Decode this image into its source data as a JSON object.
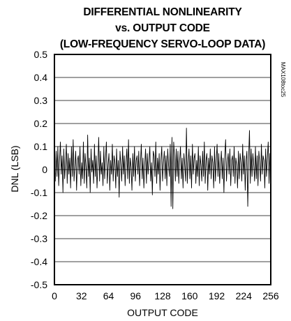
{
  "chart_data": {
    "type": "line",
    "title": [
      "DIFFERENTIAL NONLINEARITY",
      "vs. OUTPUT CODE",
      "(LOW-FREQUENCY SERVO-LOOP DATA)"
    ],
    "xlabel": "OUTPUT CODE",
    "ylabel": "DNL (LSB)",
    "xlim": [
      0,
      256
    ],
    "ylim": [
      -0.5,
      0.5
    ],
    "xticks": [
      0,
      32,
      64,
      96,
      128,
      160,
      192,
      224,
      256
    ],
    "yticks": [
      0.5,
      0.4,
      0.3,
      0.2,
      0.1,
      0,
      -0.1,
      -0.2,
      -0.3,
      -0.4,
      -0.5
    ],
    "ytick_labels": [
      "0.5",
      "0.4",
      "0.3",
      "0.2",
      "0.1",
      "0",
      "-0.1",
      "-0.2",
      "-0.3",
      "-0.4",
      "-0.5"
    ],
    "grid": "horizontal",
    "watermark": "MAX108toc25",
    "series": [
      {
        "values": [
          0.02,
          -0.05,
          0.08,
          -0.03,
          0.1,
          -0.07,
          0.04,
          0.12,
          -0.02,
          0.06,
          -0.1,
          0.09,
          -0.04,
          0.03,
          0.11,
          -0.06,
          0.07,
          -0.02,
          0.05,
          -0.08,
          0.1,
          -0.03,
          0.13,
          -0.05,
          0.02,
          0.08,
          -0.09,
          0.04,
          0.06,
          -0.02,
          0.1,
          -0.07,
          0.03,
          -0.04,
          0.12,
          -0.06,
          0.07,
          0.01,
          -0.08,
          0.15,
          -0.03,
          0.05,
          -0.1,
          0.09,
          -0.01,
          0.04,
          -0.06,
          0.11,
          -0.03,
          0.06,
          -0.08,
          0.02,
          0.14,
          -0.05,
          0.08,
          -0.02,
          0.03,
          -0.07,
          0.1,
          -0.04,
          0.05,
          0.12,
          -0.06,
          0.02,
          0.07,
          -0.09,
          0.04,
          -0.02,
          0.11,
          -0.05,
          0.06,
          0.03,
          -0.08,
          0.09,
          -0.03,
          0.04,
          -0.12,
          0.08,
          0.02,
          -0.05,
          0.1,
          -0.02,
          0.06,
          -0.07,
          0.03,
          0.09,
          -0.04,
          0.13,
          -0.06,
          0.05,
          0.01,
          -0.09,
          0.07,
          -0.03,
          0.1,
          -0.05,
          0.04,
          0.06,
          -0.02,
          0.08,
          -0.07,
          0.03,
          0.11,
          -0.04,
          0.05,
          -0.08,
          0.02,
          0.09,
          -0.06,
          0.07,
          -0.02,
          0.04,
          0.1,
          -0.05,
          0.03,
          -0.11,
          0.08,
          0.06,
          -0.03,
          0.12,
          -0.06,
          0.05,
          -0.02,
          0.07,
          -0.09,
          0.04,
          0.1,
          -0.05,
          0.03,
          0.08,
          -0.04,
          0.06,
          -0.07,
          0.09,
          0.02,
          -0.03,
          0.11,
          -0.16,
          0.14,
          -0.17,
          0.12,
          0.06,
          -0.05,
          0.09,
          -0.03,
          0.08,
          -0.06,
          0.04,
          0.1,
          -0.04,
          0.05,
          -0.08,
          0.07,
          0.02,
          -0.05,
          0.18,
          -0.06,
          0.03,
          0.09,
          -0.04,
          0.06,
          -0.08,
          0.11,
          -0.02,
          0.05,
          0.07,
          -0.06,
          0.04,
          -0.03,
          0.1,
          -0.07,
          0.06,
          0.02,
          -0.05,
          0.08,
          -0.03,
          0.12,
          -0.06,
          0.04,
          0.07,
          -0.09,
          0.05,
          -0.02,
          0.09,
          -0.04,
          0.06,
          0.03,
          -0.08,
          0.1,
          -0.05,
          0.04,
          0.11,
          -0.03,
          0.07,
          -0.06,
          0.02,
          0.08,
          -0.04,
          0.05,
          -0.1,
          0.06,
          0.13,
          -0.05,
          0.03,
          0.07,
          -0.02,
          0.09,
          -0.07,
          0.04,
          0.06,
          -0.03,
          0.1,
          -0.06,
          0.05,
          0.02,
          -0.08,
          0.08,
          -0.04,
          0.07,
          0.03,
          -0.05,
          0.11,
          -0.02,
          0.06,
          -0.09,
          0.04,
          0.08,
          -0.16,
          0.05,
          0.17,
          -0.06,
          0.09,
          -0.03,
          0.07,
          0.02,
          -0.05,
          0.1,
          -0.04,
          0.06,
          -0.07,
          0.08,
          0.03,
          -0.05,
          0.11,
          -0.02,
          0.06,
          0.04,
          -0.08,
          0.09,
          -0.03,
          0.05,
          0.12,
          -0.06,
          0.07,
          -0.04
        ]
      }
    ]
  }
}
